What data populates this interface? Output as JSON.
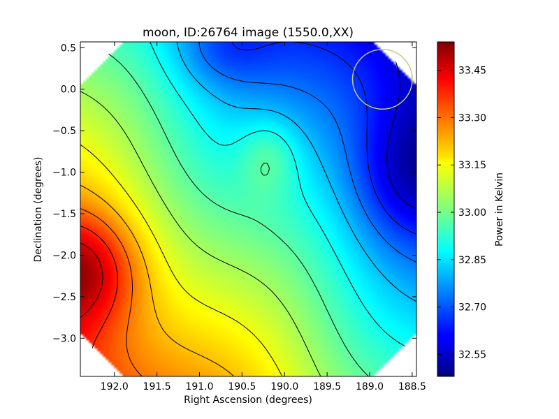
{
  "chart_data": {
    "type": "heatmap",
    "title": "moon, ID:26764 image (1550.0,XX)",
    "xlabel": "Right Ascension (degrees)",
    "ylabel": "Declination (degrees)",
    "colorbar_label": "Power in Kelvin",
    "x_ticks": [
      "192.0",
      "191.5",
      "191.0",
      "190.5",
      "190.0",
      "189.5",
      "189.0",
      "188.5"
    ],
    "y_ticks": [
      "0.5",
      "0.0",
      "−0.5",
      "−1.0",
      "−1.5",
      "−2.0",
      "−2.5",
      "−3.0"
    ],
    "colorbar_ticks": [
      "33.45",
      "33.30",
      "33.15",
      "33.00",
      "32.85",
      "32.70",
      "32.55"
    ],
    "xlim": [
      192.4,
      188.45
    ],
    "ylim": [
      -3.46,
      0.57
    ],
    "colorbar_range": [
      32.48,
      33.54
    ],
    "colormap": "jet",
    "contours": true,
    "contour_color": "#000000",
    "marker": {
      "shape": "circle",
      "ra": 188.85,
      "dec": 0.12,
      "radius_deg": 0.36,
      "color": "#c8c878"
    },
    "features": [
      {
        "kind": "maximum",
        "ra": 192.3,
        "dec": -2.1,
        "value": 33.52
      },
      {
        "kind": "minimum",
        "ra": 188.5,
        "dec": -1.05,
        "value": 32.49
      },
      {
        "kind": "minimum",
        "ra": 190.8,
        "dec": 0.55,
        "value": 32.55
      },
      {
        "kind": "local",
        "ra": 190.1,
        "dec": -0.9,
        "value": 32.82
      }
    ]
  }
}
